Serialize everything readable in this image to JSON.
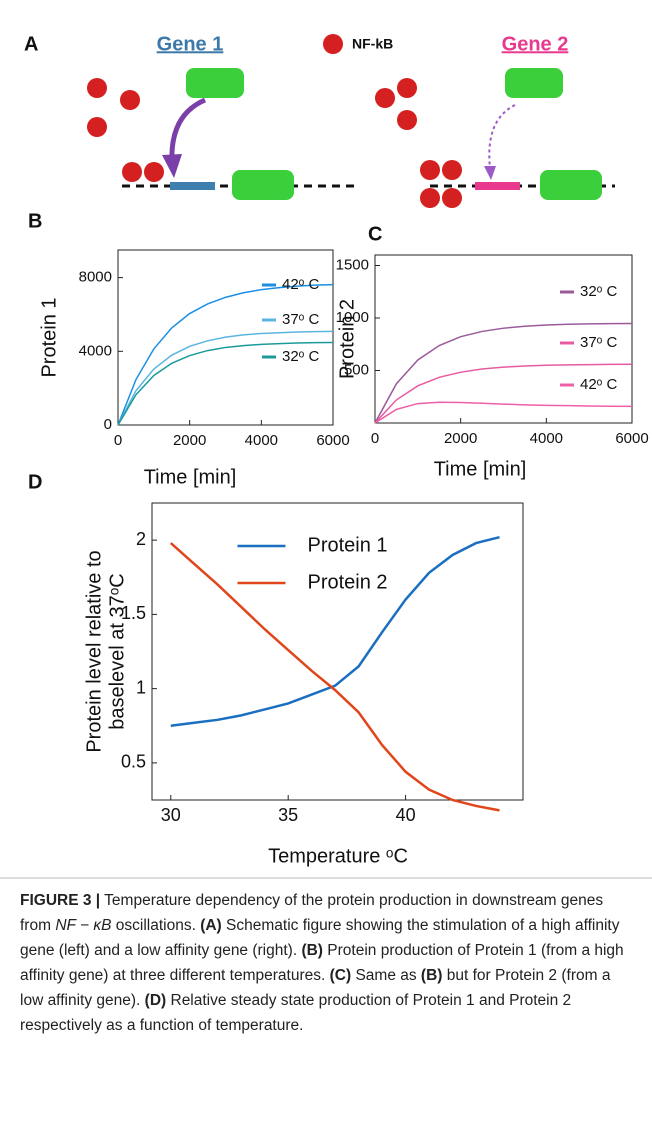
{
  "panel_a": {
    "panel_label": "A",
    "gene_1": "Gene 1",
    "nfkb": "NF-kB",
    "gene_2": "Gene 2"
  },
  "chart_data": [
    {
      "type": "line",
      "panel_label": "B",
      "xlabel": "Time [min]",
      "ylabel": [
        "Protein 1"
      ],
      "x": [
        0,
        500,
        1000,
        1500,
        2000,
        2500,
        3000,
        3500,
        4000,
        4500,
        5000,
        5500,
        6000
      ],
      "xlim": [
        0,
        6000
      ],
      "xticks": [
        0,
        2000,
        4000,
        6000
      ],
      "ylim": [
        0,
        9500
      ],
      "yticks": [
        0,
        4000,
        8000
      ],
      "series": [
        {
          "name": "42ᵒ C",
          "color": "#1b8fe3",
          "values": [
            0,
            2460,
            4130,
            5270,
            6050,
            6570,
            6930,
            7180,
            7350,
            7460,
            7540,
            7590,
            7620
          ]
        },
        {
          "name": "37ᵒ C",
          "color": "#5ab5e0",
          "values": [
            0,
            1860,
            3040,
            3790,
            4270,
            4570,
            4770,
            4890,
            4970,
            5010,
            5050,
            5070,
            5080
          ]
        },
        {
          "name": "32ᵒ C",
          "color": "#1a9a9a",
          "values": [
            0,
            1640,
            2690,
            3350,
            3770,
            4040,
            4210,
            4310,
            4380,
            4420,
            4450,
            4470,
            4480
          ]
        }
      ]
    },
    {
      "type": "line",
      "panel_label": "C",
      "xlabel": "Time [min]",
      "ylabel": [
        "Protein 2"
      ],
      "x": [
        0,
        500,
        1000,
        1500,
        2000,
        2500,
        3000,
        3500,
        4000,
        4500,
        5000,
        5500,
        6000
      ],
      "xlim": [
        0,
        6000
      ],
      "xticks": [
        0,
        2000,
        4000,
        6000
      ],
      "ylim": [
        0,
        1600
      ],
      "yticks": [
        500,
        1000,
        1500
      ],
      "series": [
        {
          "name": "32ᵒ C",
          "color": "#9a5a9a",
          "values": [
            0,
            374,
            600,
            738,
            822,
            872,
            903,
            921,
            933,
            940,
            944,
            946,
            948
          ]
        },
        {
          "name": "37ᵒ C",
          "color": "#e85aa0",
          "values": [
            0,
            220,
            354,
            435,
            484,
            514,
            532,
            543,
            550,
            554,
            556,
            558,
            559
          ]
        },
        {
          "name": "42ᵒ C",
          "color": "#ef5fa8",
          "values": [
            0,
            130,
            185,
            198,
            195,
            188,
            180,
            173,
            168,
            165,
            162,
            160,
            158
          ]
        }
      ]
    },
    {
      "type": "line",
      "panel_label": "D",
      "xlabel": "Temperature ᵒC",
      "ylabel": [
        "Protein level relative to",
        "baselevel at 37ᵒC"
      ],
      "x": [
        30,
        31,
        32,
        33,
        34,
        35,
        36,
        37,
        38,
        39,
        40,
        41,
        42,
        43,
        44
      ],
      "xlim": [
        29.2,
        45
      ],
      "xticks": [
        30,
        35,
        40
      ],
      "ylim": [
        0.25,
        2.25
      ],
      "yticks": [
        0.5,
        1,
        1.5,
        2
      ],
      "legend": "upper center",
      "series": [
        {
          "name": "Protein 1",
          "color": "#1b6fc0",
          "values": [
            0.75,
            0.77,
            0.79,
            0.82,
            0.86,
            0.9,
            0.96,
            1.02,
            1.15,
            1.38,
            1.6,
            1.78,
            1.9,
            1.98,
            2.02
          ]
        },
        {
          "name": "Protein 2",
          "color": "#e0461a",
          "values": [
            1.98,
            1.84,
            1.7,
            1.55,
            1.4,
            1.26,
            1.12,
            0.99,
            0.84,
            0.62,
            0.44,
            0.32,
            0.25,
            0.21,
            0.18
          ]
        }
      ]
    }
  ],
  "caption": {
    "parts": [
      "FIGURE 3 |",
      " Temperature dependency of the protein production in downstream genes from ",
      "NF − κB",
      " oscillations. ",
      "(A)",
      " Schematic figure showing the stimulation of a high affinity gene (left) and a low affinity gene (right). ",
      "(B)",
      " Protein production of Protein 1 (from a high affinity gene) at three different temperatures. ",
      "(C)",
      " Same as ",
      "(B)",
      " but for Protein 2 (from a low affinity gene). ",
      "(D)",
      " Relative steady state production of Protein 1 and Protein 2 respectively as a function of temperature."
    ]
  }
}
